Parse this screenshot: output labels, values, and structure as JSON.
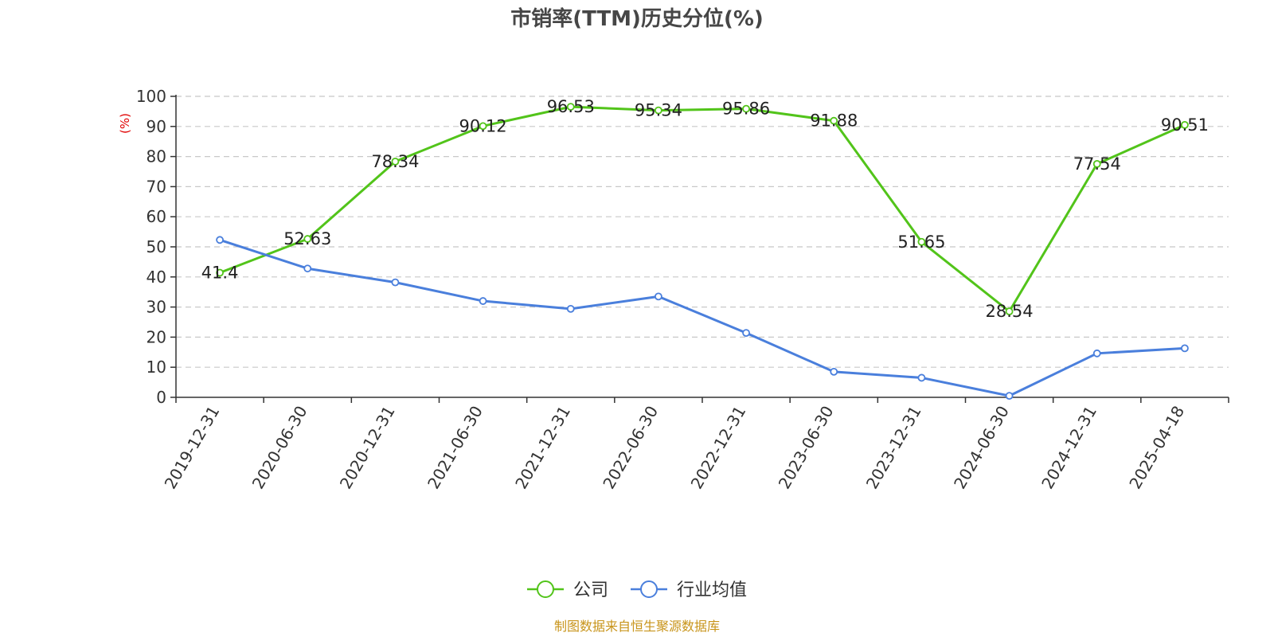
{
  "chart_data": {
    "type": "line",
    "title": "市销率(TTM)历史分位(%)",
    "ylabel": "(%)",
    "ylim": [
      0,
      100
    ],
    "yticks": [
      0,
      10,
      20,
      30,
      40,
      50,
      60,
      70,
      80,
      90,
      100
    ],
    "categories": [
      "2019-12-31",
      "2020-06-30",
      "2020-12-31",
      "2021-06-30",
      "2021-12-31",
      "2022-06-30",
      "2022-12-31",
      "2023-06-30",
      "2023-12-31",
      "2024-06-30",
      "2024-12-31",
      "2025-04-18"
    ],
    "grid": true,
    "legend_position": "bottom",
    "series": [
      {
        "name": "公司",
        "color": "#52c41a",
        "values": [
          41.4,
          52.63,
          78.34,
          90.12,
          96.53,
          95.34,
          95.86,
          91.88,
          51.65,
          28.54,
          77.54,
          90.51
        ],
        "labels": [
          "41.4",
          "52.63",
          "78.34",
          "90.12",
          "96.53",
          "95.34",
          "95.86",
          "91.88",
          "51.65",
          "28.54",
          "77.54",
          "90.51"
        ],
        "show_labels": true
      },
      {
        "name": "行业均值",
        "color": "#4a7fdc",
        "values": [
          52.3,
          42.8,
          38.2,
          32.0,
          29.4,
          33.5,
          21.4,
          8.5,
          6.5,
          0.5,
          14.6,
          16.3
        ],
        "show_labels": false
      }
    ]
  },
  "source": "制图数据来自恒生聚源数据库"
}
